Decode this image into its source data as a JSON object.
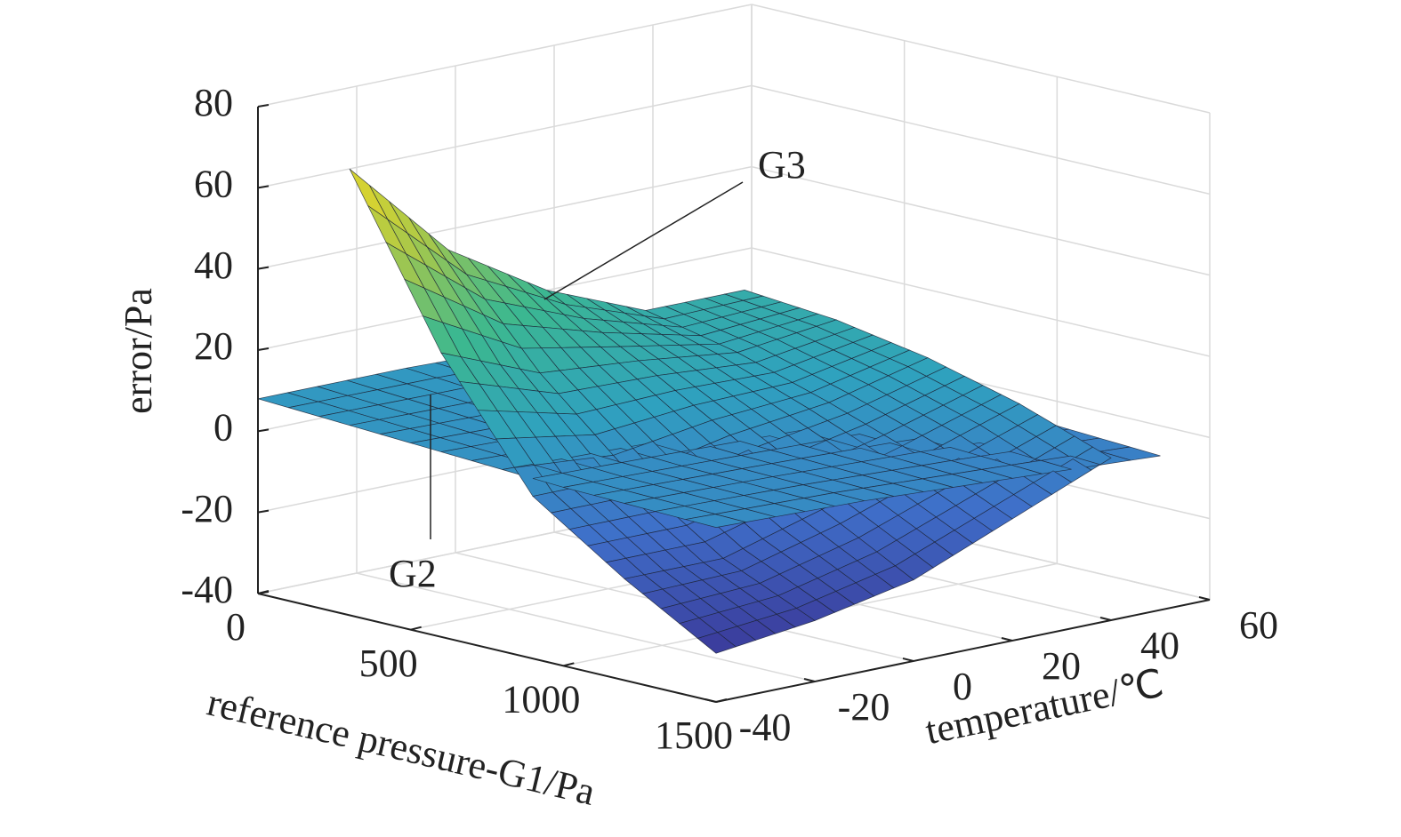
{
  "chart_data": {
    "type": "surface3d",
    "xlabel": "reference pressure-G1/Pa",
    "ylabel": "temperature/℃",
    "zlabel": "error/Pa",
    "xlim": [
      0,
      1500
    ],
    "xticks": [
      0,
      500,
      1000,
      1500
    ],
    "ylim": [
      -40,
      60
    ],
    "yticks": [
      -40,
      -20,
      0,
      20,
      40,
      60
    ],
    "zlim": [
      -40,
      80
    ],
    "zticks": [
      -40,
      -20,
      0,
      20,
      40,
      60,
      80
    ],
    "grid": true,
    "colormap": "parula",
    "series": [
      {
        "name": "G3",
        "x": [
          300,
          600,
          900,
          1200,
          1500
        ],
        "y": [
          -40,
          -20,
          0,
          20,
          40
        ],
        "z": [
          [
            70,
            30,
            0,
            -15,
            -28
          ],
          [
            45,
            20,
            0,
            -15,
            -25
          ],
          [
            30,
            18,
            5,
            -8,
            -20
          ],
          [
            20,
            15,
            8,
            0,
            -10
          ],
          [
            20,
            18,
            14,
            8,
            0
          ]
        ]
      },
      {
        "name": "G2",
        "x": [
          0,
          500,
          1000,
          1500
        ],
        "y": [
          -40,
          -10,
          20,
          50
        ],
        "z": [
          [
            8,
            6,
            4,
            3
          ],
          [
            8,
            5,
            3,
            2
          ],
          [
            7,
            4,
            2,
            0
          ],
          [
            6,
            3,
            0,
            -2
          ]
        ]
      }
    ]
  }
}
